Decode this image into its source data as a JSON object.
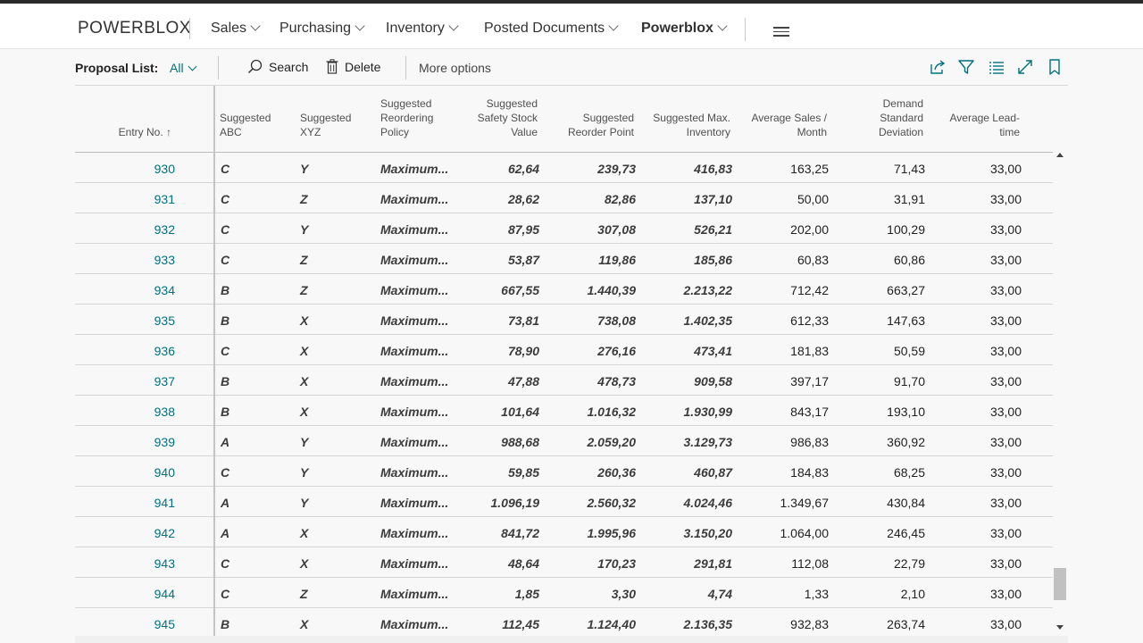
{
  "brand": "POWERBLOX",
  "nav": [
    {
      "label": "Sales"
    },
    {
      "label": "Purchasing"
    },
    {
      "label": "Inventory"
    },
    {
      "label": "Posted Documents"
    },
    {
      "label": "Powerblox"
    }
  ],
  "actionbar": {
    "title": "Proposal List:",
    "filter": "All",
    "search_label": "Search",
    "delete_label": "Delete",
    "more_options": "More options"
  },
  "columns": {
    "entry_no": "Entry No. ↑",
    "abc": [
      "Suggested",
      "ABC"
    ],
    "xyz": [
      "Suggested",
      "XYZ"
    ],
    "policy": [
      "Suggested",
      "Reordering",
      "Policy"
    ],
    "safety_stock": [
      "Suggested",
      "Safety Stock",
      "Value"
    ],
    "reorder_point": [
      "Suggested",
      "Reorder Point"
    ],
    "max_inventory": [
      "Suggested Max.",
      "Inventory"
    ],
    "avg_sales": [
      "Average Sales /",
      "Month"
    ],
    "demand_sd": [
      "Demand",
      "Standard",
      "Deviation"
    ],
    "lead_time": [
      "Average Lead-",
      "time"
    ]
  },
  "rows": [
    {
      "entry": "930",
      "abc": "C",
      "xyz": "Y",
      "policy": "Maximum...",
      "ss": "62,64",
      "rp": "239,73",
      "max": "416,83",
      "avg": "163,25",
      "sd": "71,43",
      "lt": "33,00"
    },
    {
      "entry": "931",
      "abc": "C",
      "xyz": "Z",
      "policy": "Maximum...",
      "ss": "28,62",
      "rp": "82,86",
      "max": "137,10",
      "avg": "50,00",
      "sd": "31,91",
      "lt": "33,00"
    },
    {
      "entry": "932",
      "abc": "C",
      "xyz": "Y",
      "policy": "Maximum...",
      "ss": "87,95",
      "rp": "307,08",
      "max": "526,21",
      "avg": "202,00",
      "sd": "100,29",
      "lt": "33,00"
    },
    {
      "entry": "933",
      "abc": "C",
      "xyz": "Z",
      "policy": "Maximum...",
      "ss": "53,87",
      "rp": "119,86",
      "max": "185,86",
      "avg": "60,83",
      "sd": "60,86",
      "lt": "33,00"
    },
    {
      "entry": "934",
      "abc": "B",
      "xyz": "Z",
      "policy": "Maximum...",
      "ss": "667,55",
      "rp": "1.440,39",
      "max": "2.213,22",
      "avg": "712,42",
      "sd": "663,27",
      "lt": "33,00"
    },
    {
      "entry": "935",
      "abc": "B",
      "xyz": "X",
      "policy": "Maximum...",
      "ss": "73,81",
      "rp": "738,08",
      "max": "1.402,35",
      "avg": "612,33",
      "sd": "147,63",
      "lt": "33,00"
    },
    {
      "entry": "936",
      "abc": "C",
      "xyz": "X",
      "policy": "Maximum...",
      "ss": "78,90",
      "rp": "276,16",
      "max": "473,41",
      "avg": "181,83",
      "sd": "50,59",
      "lt": "33,00"
    },
    {
      "entry": "937",
      "abc": "B",
      "xyz": "X",
      "policy": "Maximum...",
      "ss": "47,88",
      "rp": "478,73",
      "max": "909,58",
      "avg": "397,17",
      "sd": "91,70",
      "lt": "33,00"
    },
    {
      "entry": "938",
      "abc": "B",
      "xyz": "X",
      "policy": "Maximum...",
      "ss": "101,64",
      "rp": "1.016,32",
      "max": "1.930,99",
      "avg": "843,17",
      "sd": "193,10",
      "lt": "33,00"
    },
    {
      "entry": "939",
      "abc": "A",
      "xyz": "Y",
      "policy": "Maximum...",
      "ss": "988,68",
      "rp": "2.059,20",
      "max": "3.129,73",
      "avg": "986,83",
      "sd": "360,92",
      "lt": "33,00"
    },
    {
      "entry": "940",
      "abc": "C",
      "xyz": "Y",
      "policy": "Maximum...",
      "ss": "59,85",
      "rp": "260,36",
      "max": "460,87",
      "avg": "184,83",
      "sd": "68,25",
      "lt": "33,00"
    },
    {
      "entry": "941",
      "abc": "A",
      "xyz": "Y",
      "policy": "Maximum...",
      "ss": "1.096,19",
      "rp": "2.560,32",
      "max": "4.024,46",
      "avg": "1.349,67",
      "sd": "430,84",
      "lt": "33,00"
    },
    {
      "entry": "942",
      "abc": "A",
      "xyz": "X",
      "policy": "Maximum...",
      "ss": "841,72",
      "rp": "1.995,96",
      "max": "3.150,20",
      "avg": "1.064,00",
      "sd": "246,45",
      "lt": "33,00"
    },
    {
      "entry": "943",
      "abc": "C",
      "xyz": "X",
      "policy": "Maximum...",
      "ss": "48,64",
      "rp": "170,23",
      "max": "291,81",
      "avg": "112,08",
      "sd": "22,79",
      "lt": "33,00"
    },
    {
      "entry": "944",
      "abc": "C",
      "xyz": "Z",
      "policy": "Maximum...",
      "ss": "1,85",
      "rp": "3,30",
      "max": "4,74",
      "avg": "1,33",
      "sd": "2,10",
      "lt": "33,00"
    },
    {
      "entry": "945",
      "abc": "B",
      "xyz": "X",
      "policy": "Maximum...",
      "ss": "112,45",
      "rp": "1.124,40",
      "max": "2.136,35",
      "avg": "932,83",
      "sd": "263,74",
      "lt": "33,00"
    }
  ],
  "colors": {
    "accent": "#00717f",
    "text": "#212121",
    "grid_line": "#d6d6d6"
  }
}
